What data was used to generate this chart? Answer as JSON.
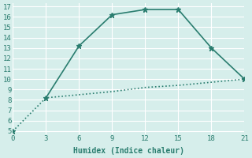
{
  "line1_x": [
    0,
    3,
    6,
    9,
    12,
    15,
    18,
    21
  ],
  "line1_y": [
    5.0,
    8.2,
    8.5,
    8.8,
    9.2,
    9.4,
    9.7,
    10.0
  ],
  "line2_x": [
    3,
    6,
    9,
    12,
    15,
    18,
    21
  ],
  "line2_y": [
    8.2,
    13.2,
    16.2,
    16.7,
    16.7,
    13.0,
    10.0
  ],
  "line_color": "#2a7d6f",
  "bg_color": "#d6eeeb",
  "grid_color": "#ffffff",
  "xlabel": "Humidex (Indice chaleur)",
  "ylim": [
    5,
    17
  ],
  "xlim": [
    0,
    21
  ],
  "yticks": [
    5,
    6,
    7,
    8,
    9,
    10,
    11,
    12,
    13,
    14,
    15,
    16,
    17
  ],
  "xticks": [
    0,
    3,
    6,
    9,
    12,
    15,
    18,
    21
  ],
  "marker": "*",
  "markersize": 5,
  "linewidth": 1.2
}
